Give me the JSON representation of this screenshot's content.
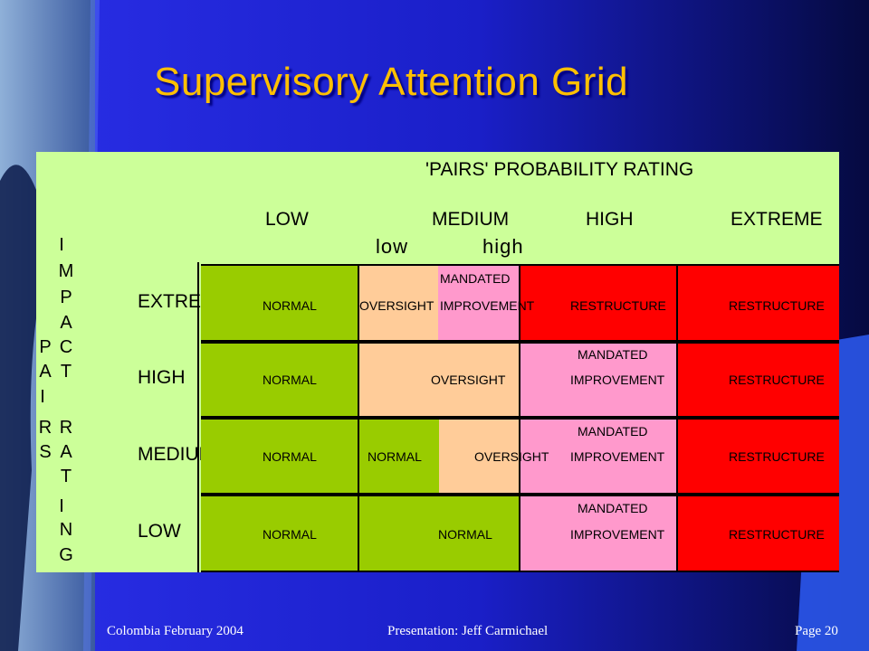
{
  "slide": {
    "title": "Supervisory Attention Grid",
    "header": "'PAIRS' PROBABILITY RATING",
    "probability_levels": [
      "LOW",
      "MEDIUM",
      "HIGH",
      "EXTREME"
    ],
    "medium_sublevels": [
      "low",
      "high"
    ],
    "pairs_letters": [
      "P",
      "A",
      "I",
      "R",
      "S"
    ],
    "impact_letters": [
      "I",
      "M",
      "P",
      "A",
      "C",
      "T"
    ],
    "rating_letters": [
      "R",
      "A",
      "T",
      "I",
      "N",
      "G"
    ],
    "impact_levels": [
      "EXTREME",
      "HIGH",
      "MEDIUM",
      "LOW"
    ],
    "grid": {
      "colors": {
        "normal": "#99cc00",
        "oversight": "#ffcc99",
        "mandated": "#ff99cc",
        "restructure": "#ff0000"
      },
      "rows": [
        {
          "impact": "EXTREME",
          "cells": [
            "NORMAL",
            "OVERSIGHT",
            "MANDATED IMPROVEMENT",
            "RESTRUCTURE",
            "RESTRUCTURE"
          ]
        },
        {
          "impact": "HIGH",
          "cells": [
            "NORMAL",
            "OVERSIGHT",
            "MANDATED IMPROVEMENT",
            "RESTRUCTURE"
          ]
        },
        {
          "impact": "MEDIUM",
          "cells": [
            "NORMAL",
            "NORMAL",
            "OVERSIGHT",
            "MANDATED IMPROVEMENT",
            "RESTRUCTURE"
          ]
        },
        {
          "impact": "LOW",
          "cells": [
            "NORMAL",
            "NORMAL",
            "MANDATED IMPROVEMENT",
            "RESTRUCTURE"
          ]
        }
      ]
    },
    "cell_text": {
      "normal": "NORMAL",
      "oversight": "OVERSIGHT",
      "mandated": "MANDATED",
      "improvement": "IMPROVEMENT",
      "restructure": "RESTRUCTURE"
    }
  },
  "footer": {
    "left": "Colombia February 2004",
    "center": "Presentation: Jeff Carmichael",
    "right": "Page 20"
  }
}
